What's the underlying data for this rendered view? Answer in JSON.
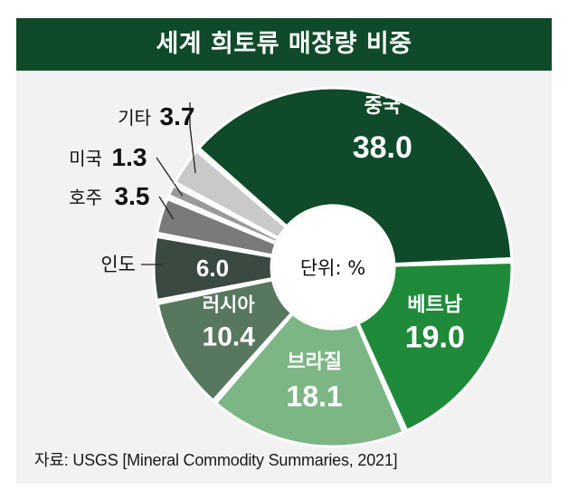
{
  "title": "세계 희토류 매장량 비중",
  "source": "자료: USGS [Mineral Commodity Summaries, 2021]",
  "chart_data": {
    "type": "pie",
    "title": "세계 희토류 매장량 비중",
    "center_label": "단위: %",
    "slices": [
      {
        "name": "중국",
        "value": 38.0,
        "value_text": "38.0",
        "color": "#0f4a2a"
      },
      {
        "name": "베트남",
        "value": 19.0,
        "value_text": "19.0",
        "color": "#1f8a3a"
      },
      {
        "name": "브라질",
        "value": 18.1,
        "value_text": "18.1",
        "color": "#7cb684"
      },
      {
        "name": "러시아",
        "value": 10.4,
        "value_text": "10.4",
        "color": "#58775f"
      },
      {
        "name": "인도",
        "value": 6.0,
        "value_text": "6.0",
        "color": "#3b4a40"
      },
      {
        "name": "호주",
        "value": 3.5,
        "value_text": "3.5",
        "color": "#7a7a7a"
      },
      {
        "name": "미국",
        "value": 1.3,
        "value_text": "1.3",
        "color": "#9a9a9a"
      },
      {
        "name": "기타",
        "value": 3.7,
        "value_text": "3.7",
        "color": "#c9c9c9"
      }
    ]
  }
}
